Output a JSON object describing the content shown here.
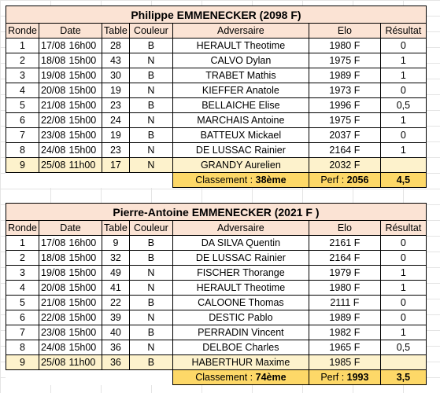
{
  "headers": {
    "ronde": "Ronde",
    "date": "Date",
    "table": "Table",
    "couleur": "Couleur",
    "adversaire": "Adversaire",
    "elo": "Elo",
    "resultat": "Résultat"
  },
  "players": [
    {
      "title": "Philippe EMMENECKER (2098 F)",
      "rows": [
        {
          "ronde": "1",
          "date": "17/08",
          "heure": "16h00",
          "table": "28",
          "couleur": "B",
          "adversaire": "HERAULT Theotime",
          "elo": "1980 F",
          "resultat": "0"
        },
        {
          "ronde": "2",
          "date": "18/08",
          "heure": "15h00",
          "table": "43",
          "couleur": "N",
          "adversaire": "CALVO Dylan",
          "elo": "1975 F",
          "resultat": "1"
        },
        {
          "ronde": "3",
          "date": "19/08",
          "heure": "15h00",
          "table": "30",
          "couleur": "B",
          "adversaire": "TRABET Mathis",
          "elo": "1989 F",
          "resultat": "1"
        },
        {
          "ronde": "4",
          "date": "20/08",
          "heure": "15h00",
          "table": "19",
          "couleur": "N",
          "adversaire": "KIEFFER Anatole",
          "elo": "1973 F",
          "resultat": "0"
        },
        {
          "ronde": "5",
          "date": "21/08",
          "heure": "15h00",
          "table": "23",
          "couleur": "B",
          "adversaire": "BELLAICHE Elise",
          "elo": "1996 F",
          "resultat": "0,5"
        },
        {
          "ronde": "6",
          "date": "22/08",
          "heure": "15h00",
          "table": "24",
          "couleur": "N",
          "adversaire": "MARCHAIS Antoine",
          "elo": "1975 F",
          "resultat": "1"
        },
        {
          "ronde": "7",
          "date": "23/08",
          "heure": "15h00",
          "table": "19",
          "couleur": "B",
          "adversaire": "BATTEUX Mickael",
          "elo": "2037 F",
          "resultat": "0"
        },
        {
          "ronde": "8",
          "date": "24/08",
          "heure": "15h00",
          "table": "23",
          "couleur": "N",
          "adversaire": "DE LUSSAC Rainier",
          "elo": "2164 F",
          "resultat": "1"
        },
        {
          "ronde": "9",
          "date": "25/08",
          "heure": "11h00",
          "table": "17",
          "couleur": "N",
          "adversaire": "GRANDY Aurelien",
          "elo": "2032 F",
          "resultat": ""
        }
      ],
      "classement_label": "Classement : ",
      "classement_value": "38ème",
      "perf_label": "Perf : ",
      "perf_value": "2056",
      "total": "4,5"
    },
    {
      "title": "Pierre-Antoine EMMENECKER (2021 F )",
      "rows": [
        {
          "ronde": "1",
          "date": "17/08",
          "heure": "16h00",
          "table": "9",
          "couleur": "B",
          "adversaire": "DA SILVA Quentin",
          "elo": "2161 F",
          "resultat": "0"
        },
        {
          "ronde": "2",
          "date": "18/08",
          "heure": "15h00",
          "table": "32",
          "couleur": "B",
          "adversaire": "DE LUSSAC Rainier",
          "elo": "2164 F",
          "resultat": "0"
        },
        {
          "ronde": "3",
          "date": "19/08",
          "heure": "15h00",
          "table": "49",
          "couleur": "N",
          "adversaire": "FISCHER Thorange",
          "elo": "1979 F",
          "resultat": "1"
        },
        {
          "ronde": "4",
          "date": "20/08",
          "heure": "15h00",
          "table": "41",
          "couleur": "N",
          "adversaire": "HERAULT Theotime",
          "elo": "1980 F",
          "resultat": "1"
        },
        {
          "ronde": "5",
          "date": "21/08",
          "heure": "15h00",
          "table": "22",
          "couleur": "B",
          "adversaire": "CALOONE Thomas",
          "elo": "2111 F",
          "resultat": "0"
        },
        {
          "ronde": "6",
          "date": "22/08",
          "heure": "15h00",
          "table": "39",
          "couleur": "N",
          "adversaire": "DESTIC Pablo",
          "elo": "1989 F",
          "resultat": "0"
        },
        {
          "ronde": "7",
          "date": "23/08",
          "heure": "15h00",
          "table": "40",
          "couleur": "B",
          "adversaire": "PERRADIN Vincent",
          "elo": "1982 F",
          "resultat": "1"
        },
        {
          "ronde": "8",
          "date": "24/08",
          "heure": "15h00",
          "table": "36",
          "couleur": "N",
          "adversaire": "DELBOE Charles",
          "elo": "1965 F",
          "resultat": "0,5"
        },
        {
          "ronde": "9",
          "date": "25/08",
          "heure": "11h00",
          "table": "36",
          "couleur": "B",
          "adversaire": "HABERTHUR Maxime",
          "elo": "1985 F",
          "resultat": ""
        }
      ],
      "classement_label": "Classement : ",
      "classement_value": "74ème",
      "perf_label": "Perf : ",
      "perf_value": "1993",
      "total": "3,5"
    }
  ],
  "colors": {
    "header_bg": "#fbe3d4",
    "current_round_bg": "#fdf2cc",
    "summary_bg": "#fdd868"
  }
}
